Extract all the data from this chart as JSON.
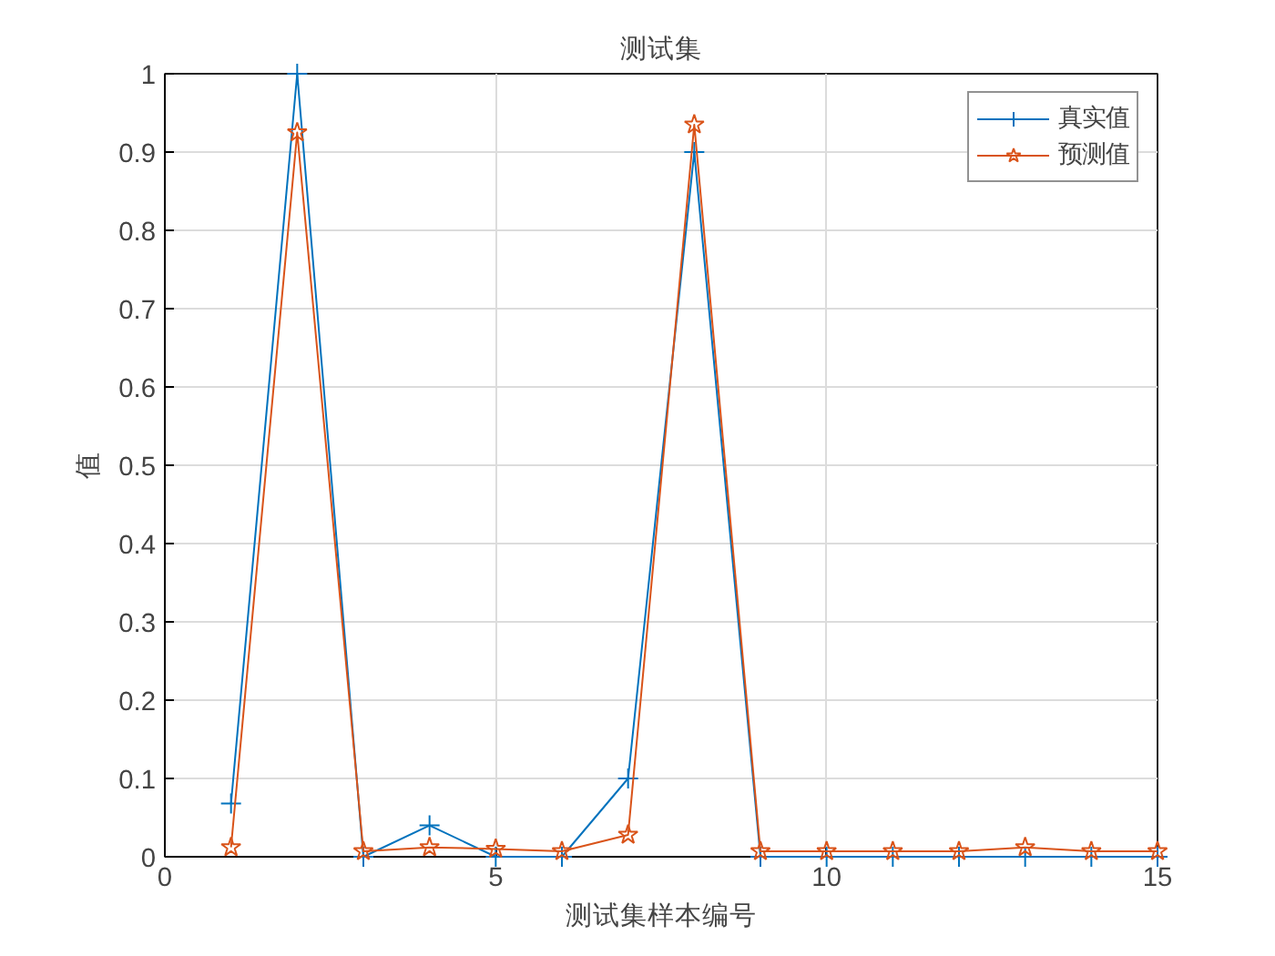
{
  "chart_data": {
    "type": "line",
    "title": "测试集",
    "xlabel": "测试集样本编号",
    "ylabel": "值",
    "x": [
      1,
      2,
      3,
      4,
      5,
      6,
      7,
      8,
      9,
      10,
      11,
      12,
      13,
      14,
      15
    ],
    "series": [
      {
        "name": "真实值",
        "color": "#0072bd",
        "marker": "cross",
        "values": [
          0.068,
          1,
          0,
          0.04,
          0,
          0,
          0.1,
          0.9,
          0,
          0,
          0,
          0,
          0,
          0,
          0
        ]
      },
      {
        "name": "预测值",
        "color": "#d95319",
        "marker": "star",
        "values": [
          0.012,
          0.925,
          0.007,
          0.012,
          0.01,
          0.007,
          0.028,
          0.935,
          0.007,
          0.007,
          0.007,
          0.007,
          0.012,
          0.007,
          0.007
        ]
      }
    ],
    "xlim": [
      0,
      15
    ],
    "ylim": [
      0,
      1
    ],
    "xticks": [
      0,
      5,
      10,
      15
    ],
    "yticks": [
      0,
      0.1,
      0.2,
      0.3,
      0.4,
      0.5,
      0.6,
      0.7,
      0.8,
      0.9,
      1
    ],
    "grid": true,
    "legend": "top right",
    "line_style": "solid"
  }
}
